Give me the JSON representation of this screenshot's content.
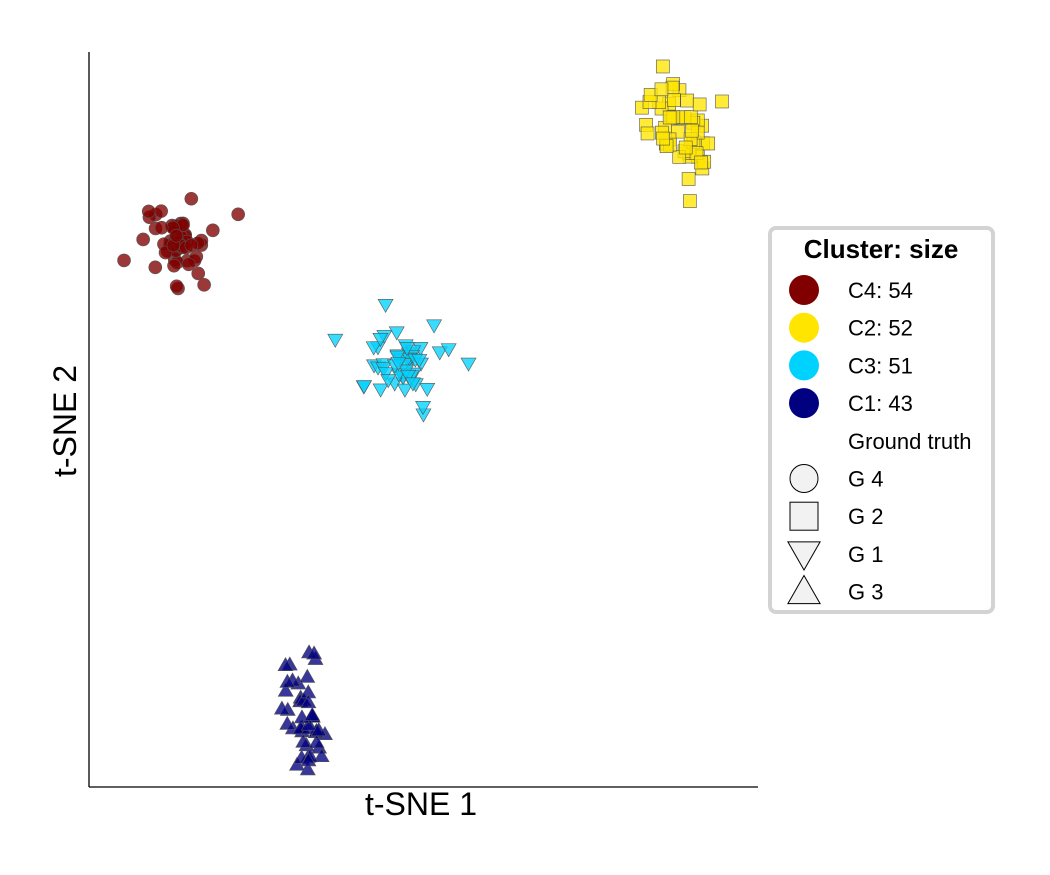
{
  "chart_data": {
    "type": "scatter",
    "xlabel": "t-SNE 1",
    "ylabel": "t-SNE 2",
    "xlim": [
      0,
      100
    ],
    "ylim": [
      0,
      100
    ],
    "ticks_visible": false,
    "grid": false,
    "legend": {
      "title": "Cluster: size",
      "placement": "right",
      "clusters": [
        {
          "label": "C4: 54",
          "color": "#800000"
        },
        {
          "label": "C2: 52",
          "color": "#FFE500"
        },
        {
          "label": "C3: 51",
          "color": "#00D2FF"
        },
        {
          "label": "C1: 43",
          "color": "#000080"
        }
      ],
      "ground_truth_title": "Ground truth",
      "shapes": [
        {
          "label": "G 4",
          "marker": "circle"
        },
        {
          "label": "G 2",
          "marker": "square"
        },
        {
          "label": "G 1",
          "marker": "triangle-down"
        },
        {
          "label": "G 3",
          "marker": "triangle-up"
        }
      ]
    },
    "series": [
      {
        "cluster": "C4",
        "group": "G 4",
        "marker": "circle",
        "color": "#800000",
        "count": 54,
        "center": [
          12,
          74
        ],
        "spread": [
          8,
          7
        ]
      },
      {
        "cluster": "C2",
        "group": "G 2",
        "marker": "square",
        "color": "#FFE500",
        "count": 52,
        "center": [
          88,
          89
        ],
        "spread": [
          6,
          8
        ]
      },
      {
        "cluster": "C3",
        "group": "G 1",
        "marker": "triangle-down",
        "color": "#00D2FF",
        "count": 51,
        "center": [
          47,
          57
        ],
        "spread": [
          8,
          7
        ]
      },
      {
        "cluster": "C1",
        "group": "G 3",
        "marker": "triangle-up",
        "color": "#000080",
        "count": 43,
        "center": [
          32,
          10
        ],
        "spread": [
          4,
          10
        ]
      }
    ]
  }
}
